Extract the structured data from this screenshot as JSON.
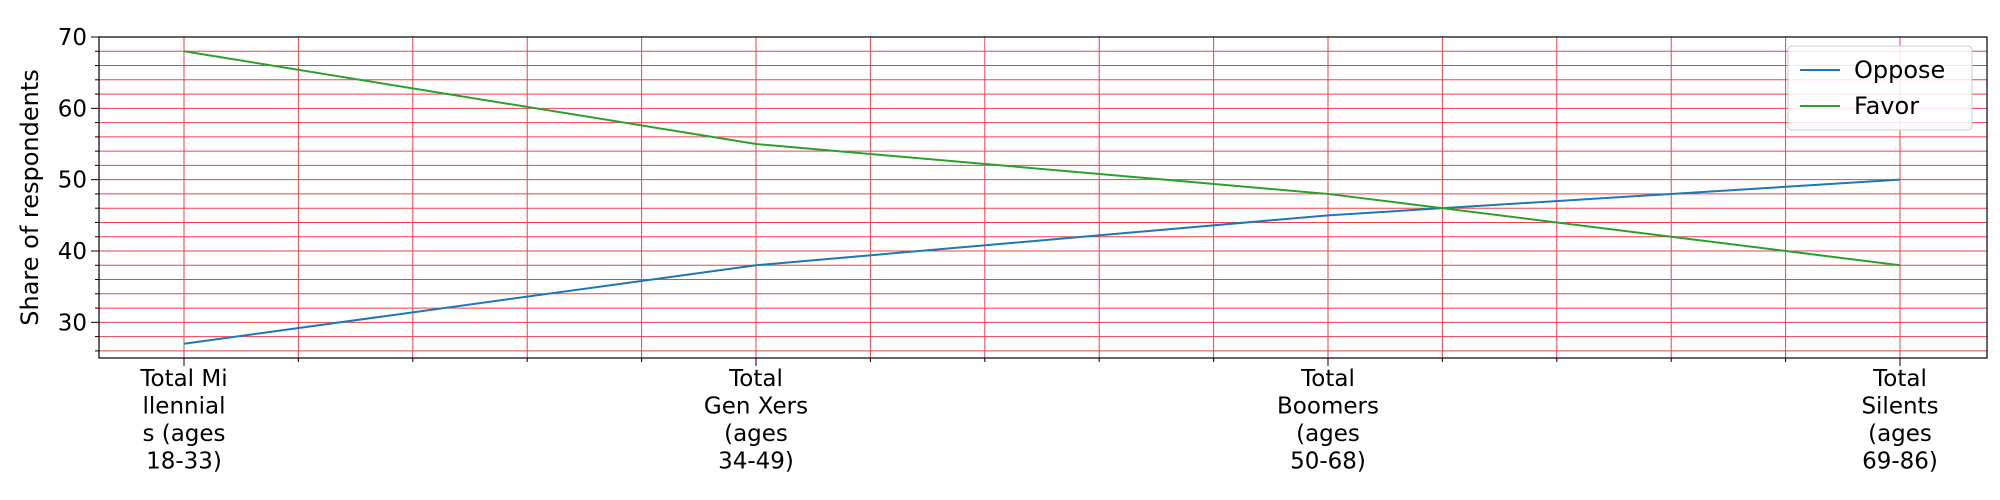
{
  "chart_data": {
    "type": "line",
    "categories": [
      [
        "Total Mi",
        "llennial",
        "s (ages",
        "18-33)"
      ],
      [
        "Total",
        "Gen Xers",
        "(ages",
        "34-49)"
      ],
      [
        "Total",
        "Boomers",
        "(ages",
        "50-68)"
      ],
      [
        "Total",
        "Silents",
        "(ages",
        "69-86)"
      ]
    ],
    "series": [
      {
        "name": "Oppose",
        "values": [
          27,
          38,
          45,
          50
        ],
        "color": "#1f77b4"
      },
      {
        "name": "Favor",
        "values": [
          68,
          55,
          48,
          38
        ],
        "color": "#2ca02c"
      }
    ],
    "ylabel": "Share of respondents",
    "xlabel": "",
    "ylim": [
      25,
      70
    ],
    "yticks": [
      30,
      40,
      50,
      60,
      70
    ],
    "grid": {
      "on": true,
      "color": "#e8434b",
      "minor": true
    },
    "legend": "top-right"
  }
}
